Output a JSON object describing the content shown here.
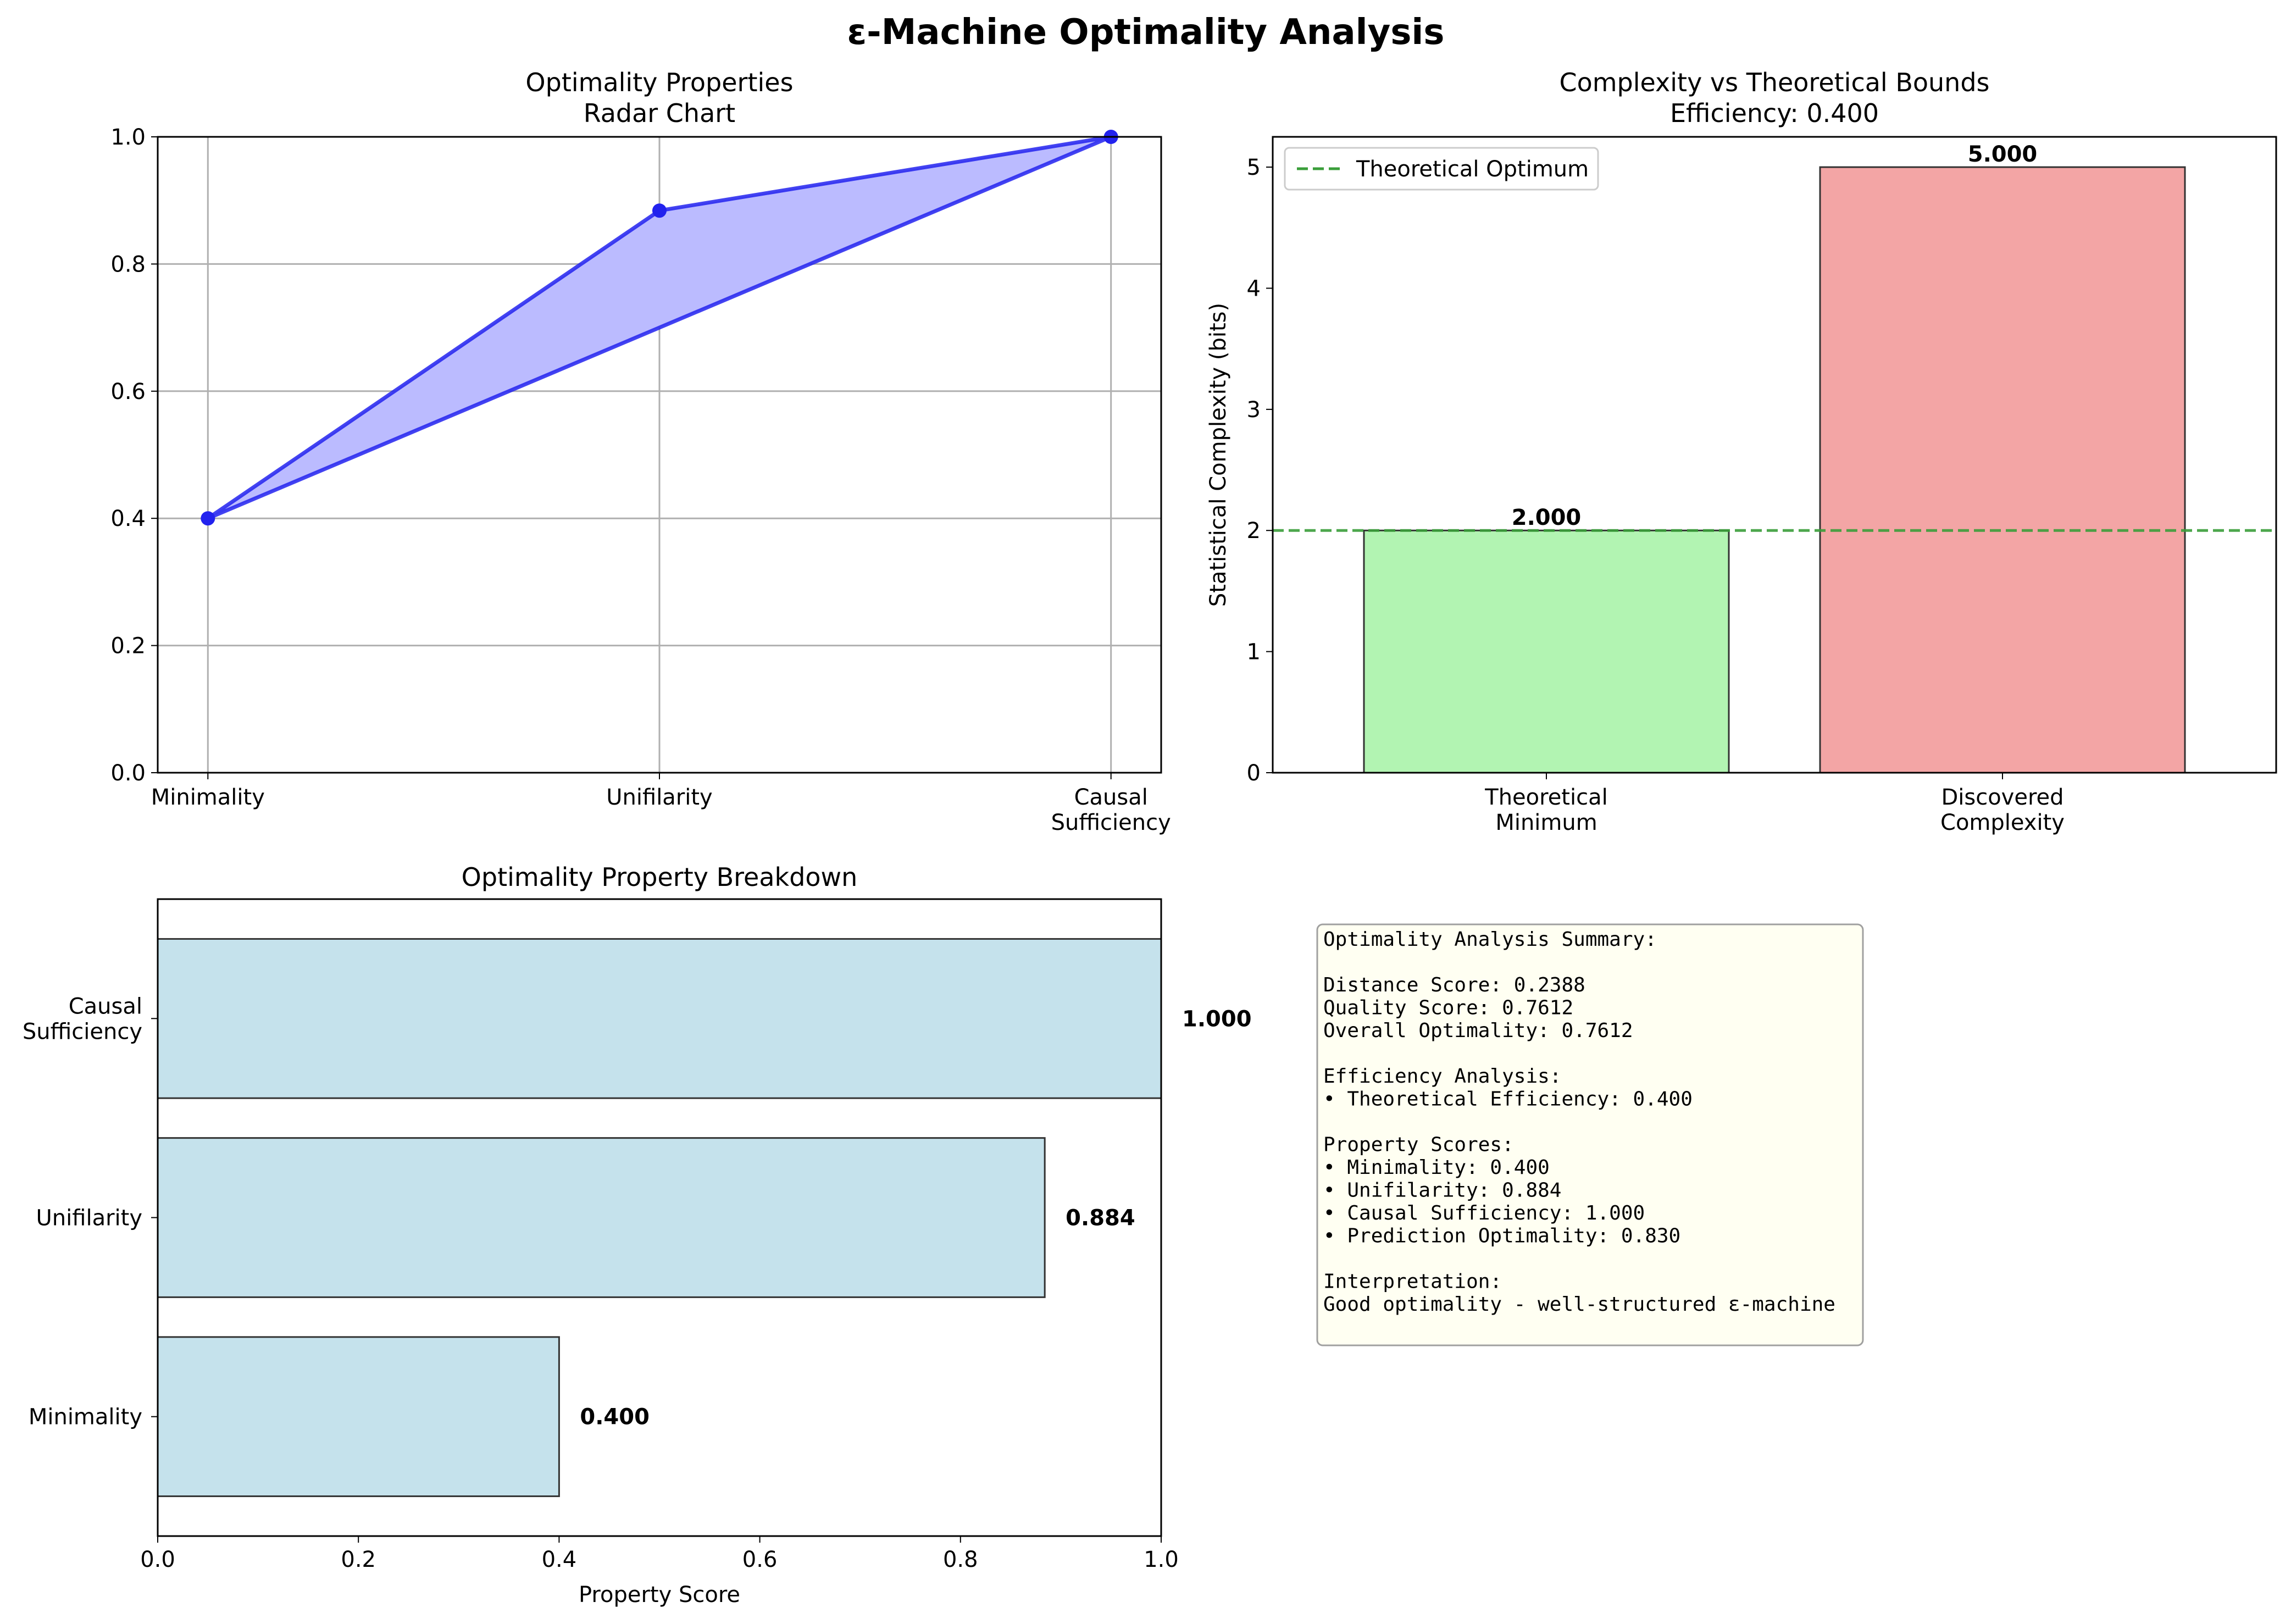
{
  "figure": {
    "title": "ε-Machine Optimality Analysis"
  },
  "chart_data": [
    {
      "type": "line",
      "title": "Optimality Properties",
      "subtitle": "Radar Chart",
      "categories": [
        "Minimality",
        "Unifilarity",
        "Causal\nSufficiency"
      ],
      "values": [
        0.4,
        0.884,
        1.0
      ],
      "closed": true,
      "fill": true,
      "ylim": [
        0,
        1.0
      ],
      "yticks": [
        "0.0",
        "0.2",
        "0.4",
        "0.6",
        "0.8",
        "1.0"
      ],
      "grid": true,
      "colors": {
        "line": "#2222ee",
        "fill": "#bbbbff"
      }
    },
    {
      "type": "bar",
      "title": "Complexity vs Theoretical Bounds",
      "subtitle": "Efficiency: 0.400",
      "categories": [
        "Theoretical\nMinimum",
        "Discovered\nComplexity"
      ],
      "values": [
        2.0,
        5.0
      ],
      "value_labels": [
        "2.000",
        "5.000"
      ],
      "ylabel": "Statistical Complexity (bits)",
      "ylim": [
        0,
        5.25
      ],
      "yticks": [
        "0",
        "1",
        "2",
        "3",
        "4",
        "5"
      ],
      "reference_line": {
        "name": "Theoretical Optimum",
        "value": 2.0,
        "style": "dashed",
        "color": "#3a9e3a"
      },
      "legend": "top-left",
      "colors": [
        "#b2f4b2",
        "#f3a5a5"
      ]
    },
    {
      "type": "bar",
      "orientation": "horizontal",
      "title": "Optimality Property Breakdown",
      "categories": [
        "Minimality",
        "Unifilarity",
        "Causal\nSufficiency"
      ],
      "values": [
        0.4,
        0.884,
        1.0
      ],
      "value_labels": [
        "0.400",
        "0.884",
        "1.000"
      ],
      "xlabel": "Property Score",
      "xlim": [
        0,
        1.0
      ],
      "xticks": [
        "0.0",
        "0.2",
        "0.4",
        "0.6",
        "0.8",
        "1.0"
      ],
      "colors": [
        "#c5e2ec"
      ]
    }
  ],
  "summary": {
    "lines": [
      "Optimality Analysis Summary:",
      "",
      "Distance Score: 0.2388",
      "Quality Score: 0.7612",
      "Overall Optimality: 0.7612",
      "",
      "Efficiency Analysis:",
      "• Theoretical Efficiency: 0.400",
      "",
      "Property Scores:",
      "• Minimality: 0.400",
      "• Unifilarity: 0.884",
      "• Causal Sufficiency: 1.000",
      "• Prediction Optimality: 0.830",
      "",
      "Interpretation:",
      "Good optimality - well-structured ε-machine"
    ],
    "background": "#fffff2"
  }
}
